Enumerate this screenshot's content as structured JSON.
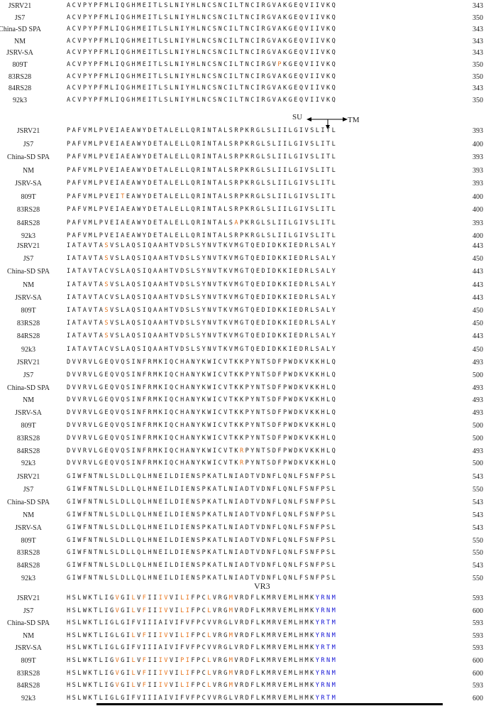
{
  "markers": {
    "su": "SU",
    "tm": "TM",
    "vr3": "VR3"
  },
  "blocks": [
    {
      "rows": [
        {
          "name": "JSRV21",
          "seq": "ACVPYPFMLIQGHMEITLSLNIYHLNCSNCILTNCIRGVAKGEQVIIVKQ",
          "num": "343"
        },
        {
          "name": "JS7",
          "seq": "ACVPYPFMLIQGHMEITLSLNIYHLNCSNCILTNCIRGVAKGEQVIIVKQ",
          "num": "350"
        },
        {
          "name": "China-SD SPA",
          "seq": "ACVPYPFMLIQGHMEITLSLNIYHLNCSNCILTNCIRGVAKGEQVIIVKQ",
          "num": "343"
        },
        {
          "name": "NM",
          "seq": "ACVPYPFMLIQGHMEITLSLNIYHLNCSNCILTNCIRGVAKGEQVIIVKQ",
          "num": "343"
        },
        {
          "name": "JSRV-SA",
          "seq": "ACVPYPFMLIQGHMEITLSLNIYHLNCSNCILTNCIRGVAKGEQVIIVKQ",
          "num": "343"
        },
        {
          "name": "809T",
          "seq": "ACVPYPFMLIQGHMEITLSLNIYHLNCSNCILTNCIRGV[P]KGEQVIIVKQ",
          "num": "350"
        },
        {
          "name": "83RS28",
          "seq": "ACVPYPFMLIQGHMEITLSLNIYHLNCSNCILTNCIRGVAKGEQVIIVKQ",
          "num": "350"
        },
        {
          "name": "84RS28",
          "seq": "ACVPYPFMLIQGHMEITLSLNIYHLNCSNCILTNCIRGVAKGEQVIIVKQ",
          "num": "343"
        },
        {
          "name": "92k3",
          "seq": "ACVPYPFMLIQGHMEITLSLNIYHLNCSNCILTNCIRGVAKGEQVIIVKQ",
          "num": "350"
        }
      ]
    },
    {
      "rows": [
        {
          "name": "JSRV21",
          "seq": "PAFVMLPVEIAEAWYDETALELLQRINTALSRPKRGLSLIILGIVSLITL",
          "num": "393"
        },
        {
          "name": "JS7",
          "seq": "PAFVMLPVEIAEAWYDETALELLQRINTALSRPKRGLSLIILGIVSLITL",
          "num": "400"
        },
        {
          "name": "China-SD SPA",
          "seq": "PAFVMLPVEIAEAWYDETALELLQRINTALSRPKRGLSLIILGIVSLITL",
          "num": "393"
        },
        {
          "name": "NM",
          "seq": "PAFVMLPVEIAEAWYDETALELLQRINTALSRPKRGLSLIILGIVSLITL",
          "num": "393"
        },
        {
          "name": "JSRV-SA",
          "seq": "PAFVMLPVEIAEAWYDETALELLQRINTALSRPKRGLSLIILGIVSLITL",
          "num": "393"
        },
        {
          "name": "809T",
          "seq": "PAFVMLPVEI[T]EAWYDETALELLQRINTALSRPKRGLSLIILGIVSLITL",
          "num": "400"
        },
        {
          "name": "83RS28",
          "seq": "PAFVMLPVEIAEAWYDETALELLQRINTALSRPKRGLSLIILGIVSLITL",
          "num": "400"
        },
        {
          "name": "84RS28",
          "seq": "PAFVMLPVEIAEAWYDETALELLQRINTALS[A]PKRGLSLIILGIVSLITL",
          "num": "393"
        },
        {
          "name": "92k3",
          "seq": "PAFVMLPVEIAEAWYDETALELLQRINTALSRPKRGLSLIILGIVSLITL",
          "num": "400"
        }
      ]
    },
    {
      "rows": [
        {
          "name": "JSRV21",
          "seq": "IATAVTA[S]VSLAQSIQAAHTVDSLSYNVTKVMGTQEDIDKKIEDRLSALY",
          "num": "443"
        },
        {
          "name": "JS7",
          "seq": "IATAVTA[S]VSLAQSIQAAHTVDSLSYNVTKVMGTQEDIDKKIEDRLSALY",
          "num": "450"
        },
        {
          "name": "China-SD SPA",
          "seq": "IATAVTACVSLAQSIQAAHTVDSLSYNVTKVMGTQEDIDKKIEDRLSALY",
          "num": "443"
        },
        {
          "name": "NM",
          "seq": "IATAVTA[S]VSLAQSIQAAHTVDSLSYNVTKVMGTQEDIDKKIEDRLSALY",
          "num": "443"
        },
        {
          "name": "JSRV-SA",
          "seq": "IATAVTACVSLAQSIQAAHTVDSLSYNVTKVMGTQEDIDKKIEDRLSALY",
          "num": "443"
        },
        {
          "name": "809T",
          "seq": "IATAVTA[S]VSLAQSIQAAHTVDSLSYNVTKVMGTQEDIDKKIEDRLSALY",
          "num": "450"
        },
        {
          "name": "83RS28",
          "seq": "IATAVTA[S]VSLAQSIQAAHTVDSLSYNVTKVMGTQEDIDKKIEDRLSALY",
          "num": "450"
        },
        {
          "name": "84RS28",
          "seq": "IATAVTA[S]VSLAQSIQAAHTVDSLSYNVTKVMGTQEDIDKKIEDRLSALY",
          "num": "443"
        },
        {
          "name": "92k3",
          "seq": "IATAVTACVSLAQSIQAAHTVDSLSYNVTKVMGTQEDIDKKIEDRLSALY",
          "num": "450"
        }
      ]
    },
    {
      "rows": [
        {
          "name": "JSRV21",
          "seq": "DVVRVLGEQVQSINFRMKIQCHANYKWICVTKKPYNTSDFPWDKVKKHLQ",
          "num": "493"
        },
        {
          "name": "JS7",
          "seq": "DVVRVLGEQVQSINFRMKIQCHANYKWICVTKKPYNTSDFPWDKVKKHLQ",
          "num": "500"
        },
        {
          "name": "China-SD SPA",
          "seq": "DVVRVLGEQVQSINFRMKIQCHANYKWICVTKKPYNTSDFPWDKVKKHLQ",
          "num": "493"
        },
        {
          "name": "NM",
          "seq": "DVVRVLGEQVQSINFRMKIQCHANYKWICVTKKPYNTSDFPWDKVKKHLQ",
          "num": "493"
        },
        {
          "name": "JSRV-SA",
          "seq": "DVVRVLGEQVQSINFRMKIQCHANYKWICVTKKPYNTSDFPWDKVKKHLQ",
          "num": "493"
        },
        {
          "name": "809T",
          "seq": "DVVRVLGEQVQSINFRMKIQCHANYKWICVTKKPYNTSDFPWDKVKKHLQ",
          "num": "500"
        },
        {
          "name": "83RS28",
          "seq": "DVVRVLGEQVQSINFRMKIQCHANYKWICVTKKPYNTSDFPWDKVKKHLQ",
          "num": "500"
        },
        {
          "name": "84RS28",
          "seq": "DVVRVLGEQVQSINFRMKIQCHANYKWICVTK[R]PYNTSDFPWDKVKKHLQ",
          "num": "493"
        },
        {
          "name": "92k3",
          "seq": "DVVRVLGEQVQSINFRMKIQCHANYKWICVTK[R]PYNTSDFPWDKVKKHLQ",
          "num": "500"
        }
      ]
    },
    {
      "rows": [
        {
          "name": "JSRV21",
          "seq": "GIWFNTNLSLDLLQLHNEILDIENSPKATLNIADTVDNFLQNLFSNFPSL",
          "num": "543"
        },
        {
          "name": "JS7",
          "seq": "GIWFNTNLSLDLLQLHNEILDIENSPKATLNIADTVDNFLQNLFSNFPSL",
          "num": "550"
        },
        {
          "name": "China-SD SPA",
          "seq": "GIWFNTNLSLDLLQLHNEILDIENSPKATLNIADTVDNFLQNLFSNFPSL",
          "num": "543"
        },
        {
          "name": "NM",
          "seq": "GIWFNTNLSLDLLQLHNEILDIENSPKATLNIADTVDNFLQNLFSNFPSL",
          "num": "543"
        },
        {
          "name": "JSRV-SA",
          "seq": "GIWFNTNLSLDLLQLHNEILDIENSPKATLNIADTVDNFLQNLFSNFPSL",
          "num": "543"
        },
        {
          "name": "809T",
          "seq": "GIWFNTNLSLDLLQLHNEILDIENSPKATLNIADTVDNFLQNLFSNFPSL",
          "num": "550"
        },
        {
          "name": "83RS28",
          "seq": "GIWFNTNLSLDLLQLHNEILDIENSPKATLNIADTVDNFLQNLFSNFPSL",
          "num": "550"
        },
        {
          "name": "84RS28",
          "seq": "GIWFNTNLSLDLLQLHNEILDIENSPKATLNIADTVDNFLQNLFSNFPSL",
          "num": "543"
        },
        {
          "name": "92k3",
          "seq": "GIWFNTNLSLDLLQLHNEILDIENSPKATLNIADTVDNFLQNLFSNFPSL",
          "num": "550"
        }
      ]
    },
    {
      "rows": [
        {
          "name": "JSRV21",
          "seq": "HSLWKTLIG[V]GI[L]V[F]II[IV]VI[LI]FPC[L]VRG[M]VRDFLKMRVEMLHMK{YRNM}",
          "num": "593"
        },
        {
          "name": "JS7",
          "seq": "HSLWKTLIG[V]GI[L]V[F]II[IV]VI[LI]FPC[L]VRG[M]VRDFLKMRVEMLHMK{YRNM}",
          "num": "600"
        },
        {
          "name": "China-SD SPA",
          "seq": "HSLWKTLIGLGIFVIIIAIVIFVFPCVVRGLVRDFLKMRVEMLHMK{YRTM}",
          "num": "593"
        },
        {
          "name": "NM",
          "seq": "HSLWKTLIGLGI[L]V[F]II[IV]VI[LI]FPC[L]VRG[M]VRDFLKMRVEMLHMK{YRNM}",
          "num": "593"
        },
        {
          "name": "JSRV-SA",
          "seq": "HSLWKTLIGLGIFVIIIAIVIFVFPCVVRGLVRDFLKMRVEMLHMK{YRTM}",
          "num": "593"
        },
        {
          "name": "809T",
          "seq": "HSLWKTLIG[V]GI[L]V[F]II[IV]VI[PI]FPC[L]VRG[M]VRDFLKMRVEMLHMK{YRNM}",
          "num": "600"
        },
        {
          "name": "83RS28",
          "seq": "HSLWKTLIG[V]GI[L]V[F]II[IV]VI[LI]FPC[L]VRG[M]VRDFLKMRVEMLHMK{YRNM}",
          "num": "600"
        },
        {
          "name": "84RS28",
          "seq": "HSLWKTLIG[V]GI[L]V[F]II[IV]VI[LI]FPC[L]VRG[M]VRDFLKMRVEMLHMK{YRNM}",
          "num": "593"
        },
        {
          "name": "92k3",
          "seq": "HSLWKTLIGLGIFVIIIAIVIFVFPCVVRGLVRDFLKMRVEMLHMK{YRTM}",
          "num": "600"
        }
      ]
    }
  ]
}
